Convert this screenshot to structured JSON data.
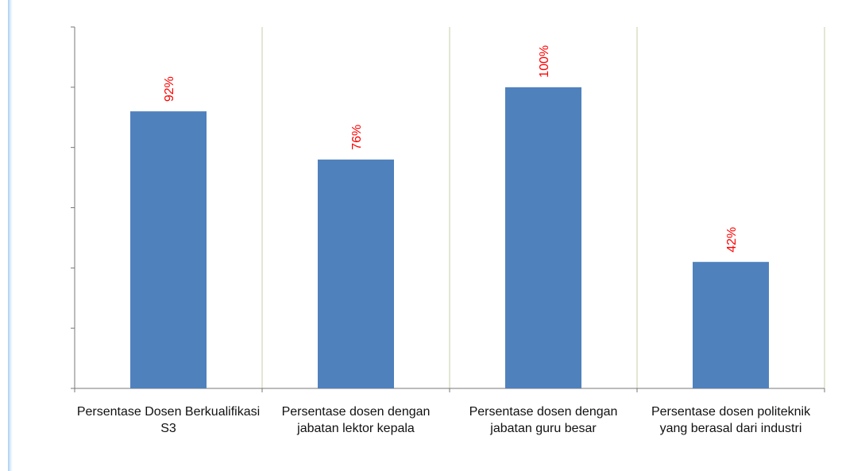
{
  "chart_data": {
    "type": "bar",
    "categories": [
      "Persentase Dosen Berkualifikasi S3",
      "Persentase dosen dengan jabatan lektor kepala",
      "Persentase dosen dengan jabatan guru besar",
      "Persentase dosen politeknik yang berasal dari industri"
    ],
    "values": [
      92,
      76,
      100,
      42
    ],
    "data_labels": [
      "92%",
      "76%",
      "100%",
      "42%"
    ],
    "ylim": [
      0,
      120
    ],
    "y_tick_count": 6,
    "y_tick_labels_shown": false,
    "grid": "vertical-separators",
    "bar_color": "#4f81bd",
    "data_label_color": "#ff0000",
    "title": "",
    "xlabel": "",
    "ylabel": ""
  }
}
